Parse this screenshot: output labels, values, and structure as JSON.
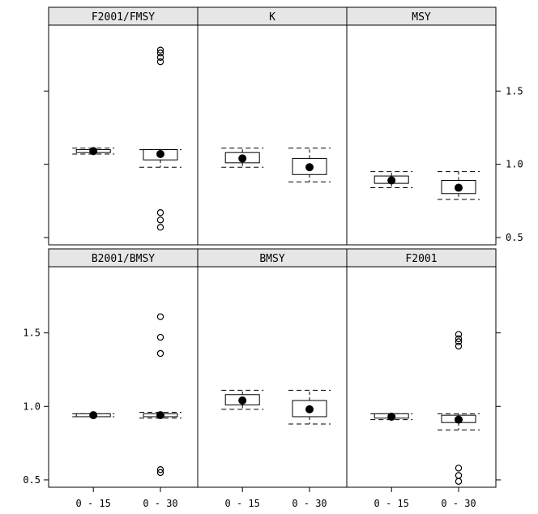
{
  "chart_data": {
    "type": "box",
    "layout": "2 rows x 3 columns (lattice bwplot)",
    "x_categories": [
      "0 - 15",
      "0 - 30"
    ],
    "y_ticks": [
      "0.5",
      "1.0",
      "1.5"
    ],
    "y_range": [
      0.45,
      1.95
    ],
    "panels": [
      {
        "title": "F2001/FMSY",
        "boxes": [
          {
            "category": "0 - 15",
            "median": 1.09,
            "q1": 1.08,
            "q3": 1.1,
            "lower": 1.07,
            "upper": 1.11,
            "outliers": []
          },
          {
            "category": "0 - 30",
            "median": 1.07,
            "q1": 1.03,
            "q3": 1.1,
            "lower": 0.98,
            "upper": 1.1,
            "outliers": [
              1.78,
              1.76,
              1.73,
              1.7,
              0.67,
              0.62,
              0.57
            ]
          }
        ]
      },
      {
        "title": "K",
        "boxes": [
          {
            "category": "0 - 15",
            "median": 1.04,
            "q1": 1.01,
            "q3": 1.08,
            "lower": 0.98,
            "upper": 1.11,
            "outliers": []
          },
          {
            "category": "0 - 30",
            "median": 0.98,
            "q1": 0.93,
            "q3": 1.04,
            "lower": 0.88,
            "upper": 1.11,
            "outliers": []
          }
        ]
      },
      {
        "title": "MSY",
        "boxes": [
          {
            "category": "0 - 15",
            "median": 0.89,
            "q1": 0.87,
            "q3": 0.92,
            "lower": 0.84,
            "upper": 0.95,
            "outliers": []
          },
          {
            "category": "0 - 30",
            "median": 0.84,
            "q1": 0.8,
            "q3": 0.89,
            "lower": 0.76,
            "upper": 0.95,
            "outliers": []
          }
        ]
      },
      {
        "title": "B2001/BMSY",
        "boxes": [
          {
            "category": "0 - 15",
            "median": 0.94,
            "q1": 0.93,
            "q3": 0.95,
            "lower": 0.93,
            "upper": 0.95,
            "outliers": []
          },
          {
            "category": "0 - 30",
            "median": 0.94,
            "q1": 0.93,
            "q3": 0.95,
            "lower": 0.92,
            "upper": 0.96,
            "outliers": [
              1.61,
              1.47,
              1.36,
              0.57,
              0.55
            ]
          }
        ]
      },
      {
        "title": "BMSY",
        "boxes": [
          {
            "category": "0 - 15",
            "median": 1.04,
            "q1": 1.01,
            "q3": 1.08,
            "lower": 0.98,
            "upper": 1.11,
            "outliers": []
          },
          {
            "category": "0 - 30",
            "median": 0.98,
            "q1": 0.93,
            "q3": 1.04,
            "lower": 0.88,
            "upper": 1.11,
            "outliers": []
          }
        ]
      },
      {
        "title": "F2001",
        "boxes": [
          {
            "category": "0 - 15",
            "median": 0.93,
            "q1": 0.92,
            "q3": 0.95,
            "lower": 0.91,
            "upper": 0.95,
            "outliers": []
          },
          {
            "category": "0 - 30",
            "median": 0.91,
            "q1": 0.89,
            "q3": 0.94,
            "lower": 0.84,
            "upper": 0.95,
            "outliers": [
              1.49,
              1.46,
              1.44,
              1.41,
              0.58,
              0.53,
              0.49
            ]
          }
        ]
      }
    ]
  }
}
